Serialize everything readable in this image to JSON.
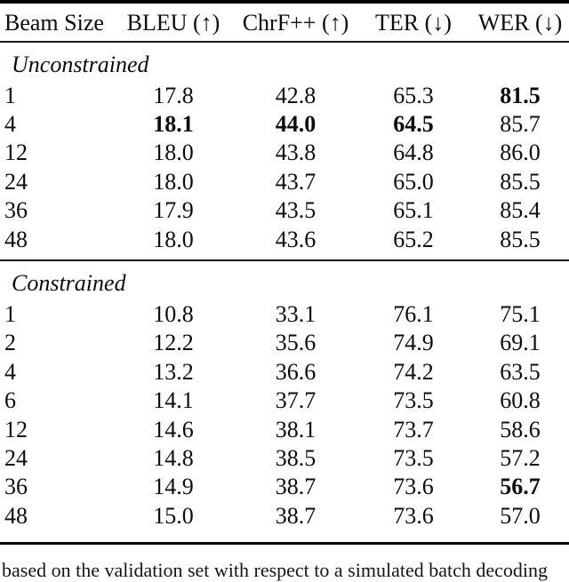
{
  "page": {
    "background": "#ffffff",
    "text_color": "#0c0c0c",
    "rule_color": "#000000"
  },
  "table": {
    "columns": [
      {
        "label": "Beam Size",
        "align": "left"
      },
      {
        "label": "BLEU (↑)",
        "align": "center"
      },
      {
        "label": "ChrF++ (↑)",
        "align": "center"
      },
      {
        "label": "TER (↓)",
        "align": "center"
      },
      {
        "label": "WER (↓)",
        "align": "center"
      }
    ],
    "sections": [
      {
        "label": "Unconstrained",
        "rows": [
          {
            "beam": "1",
            "values": [
              "17.8",
              "42.8",
              "65.3",
              "81.5"
            ],
            "bold": [
              false,
              false,
              false,
              true
            ]
          },
          {
            "beam": "4",
            "values": [
              "18.1",
              "44.0",
              "64.5",
              "85.7"
            ],
            "bold": [
              true,
              true,
              true,
              false
            ]
          },
          {
            "beam": "12",
            "values": [
              "18.0",
              "43.8",
              "64.8",
              "86.0"
            ],
            "bold": [
              false,
              false,
              false,
              false
            ]
          },
          {
            "beam": "24",
            "values": [
              "18.0",
              "43.7",
              "65.0",
              "85.5"
            ],
            "bold": [
              false,
              false,
              false,
              false
            ]
          },
          {
            "beam": "36",
            "values": [
              "17.9",
              "43.5",
              "65.1",
              "85.4"
            ],
            "bold": [
              false,
              false,
              false,
              false
            ]
          },
          {
            "beam": "48",
            "values": [
              "18.0",
              "43.6",
              "65.2",
              "85.5"
            ],
            "bold": [
              false,
              false,
              false,
              false
            ]
          }
        ]
      },
      {
        "label": "Constrained",
        "rows": [
          {
            "beam": "1",
            "values": [
              "10.8",
              "33.1",
              "76.1",
              "75.1"
            ],
            "bold": [
              false,
              false,
              false,
              false
            ]
          },
          {
            "beam": "2",
            "values": [
              "12.2",
              "35.6",
              "74.9",
              "69.1"
            ],
            "bold": [
              false,
              false,
              false,
              false
            ]
          },
          {
            "beam": "4",
            "values": [
              "13.2",
              "36.6",
              "74.2",
              "63.5"
            ],
            "bold": [
              false,
              false,
              false,
              false
            ]
          },
          {
            "beam": "6",
            "values": [
              "14.1",
              "37.7",
              "73.5",
              "60.8"
            ],
            "bold": [
              false,
              false,
              false,
              false
            ]
          },
          {
            "beam": "12",
            "values": [
              "14.6",
              "38.1",
              "73.7",
              "58.6"
            ],
            "bold": [
              false,
              false,
              false,
              false
            ]
          },
          {
            "beam": "24",
            "values": [
              "14.8",
              "38.5",
              "73.5",
              "57.2"
            ],
            "bold": [
              false,
              false,
              false,
              false
            ]
          },
          {
            "beam": "36",
            "values": [
              "14.9",
              "38.7",
              "73.6",
              "56.7"
            ],
            "bold": [
              false,
              false,
              false,
              true
            ]
          },
          {
            "beam": "48",
            "values": [
              "15.0",
              "38.7",
              "73.6",
              "57.0"
            ],
            "bold": [
              false,
              false,
              false,
              false
            ]
          }
        ]
      }
    ]
  },
  "caption_fragment": "based on the validation set with respect to a simulated batch decoding"
}
